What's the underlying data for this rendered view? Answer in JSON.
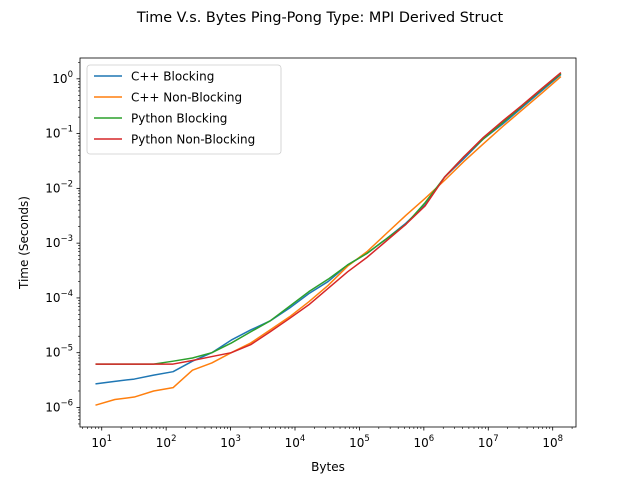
{
  "chart_data": {
    "type": "line",
    "title": "Time V.s. Bytes Ping-Pong Type: MPI Derived Struct",
    "xlabel": "Bytes",
    "ylabel": "Time (Seconds)",
    "xscale": "log",
    "yscale": "log",
    "xlim": [
      4.6,
      230000000.0
    ],
    "ylim": [
      4.4e-07,
      2.4
    ],
    "x_ticks": [
      {
        "value": 10,
        "base": "10",
        "exp": "1"
      },
      {
        "value": 100,
        "base": "10",
        "exp": "2"
      },
      {
        "value": 1000,
        "base": "10",
        "exp": "3"
      },
      {
        "value": 10000,
        "base": "10",
        "exp": "4"
      },
      {
        "value": 100000,
        "base": "10",
        "exp": "5"
      },
      {
        "value": 1000000,
        "base": "10",
        "exp": "6"
      },
      {
        "value": 10000000,
        "base": "10",
        "exp": "7"
      },
      {
        "value": 100000000,
        "base": "10",
        "exp": "8"
      }
    ],
    "y_ticks": [
      {
        "value": 1e-06,
        "base": "10",
        "exp": "−6"
      },
      {
        "value": 1e-05,
        "base": "10",
        "exp": "−5"
      },
      {
        "value": 0.0001,
        "base": "10",
        "exp": "−4"
      },
      {
        "value": 0.001,
        "base": "10",
        "exp": "−3"
      },
      {
        "value": 0.01,
        "base": "10",
        "exp": "−2"
      },
      {
        "value": 0.1,
        "base": "10",
        "exp": "−1"
      },
      {
        "value": 1,
        "base": "10",
        "exp": "0"
      }
    ],
    "grid": false,
    "legend_position": "top-left",
    "x": [
      8,
      16,
      32,
      64,
      128,
      256,
      512,
      1024,
      2048,
      4096,
      8192,
      16384,
      32768,
      65536,
      131072,
      262144,
      524288,
      1048576,
      2097152,
      4194304,
      8388608,
      16777216,
      33554432,
      67108864,
      134217728
    ],
    "series": [
      {
        "name": "C++ Blocking",
        "color": "#1f77b4",
        "values": [
          2.7e-06,
          3e-06,
          3.3e-06,
          3.9e-06,
          4.5e-06,
          7e-06,
          1e-05,
          1.7e-05,
          2.6e-05,
          3.8e-05,
          6.5e-05,
          0.00012,
          0.0002,
          0.0004,
          0.00065,
          0.0012,
          0.0023,
          0.005,
          0.016,
          0.035,
          0.08,
          0.15,
          0.3,
          0.6,
          1.2
        ]
      },
      {
        "name": "C++ Non-Blocking",
        "color": "#ff7f0e",
        "values": [
          1.1e-06,
          1.4e-06,
          1.55e-06,
          2e-06,
          2.3e-06,
          4.8e-06,
          6.5e-06,
          1e-05,
          1.5e-05,
          2.6e-05,
          4.5e-05,
          8.5e-05,
          0.00017,
          0.00038,
          0.0007,
          0.0015,
          0.0032,
          0.0066,
          0.014,
          0.031,
          0.065,
          0.135,
          0.27,
          0.54,
          1.1
        ]
      },
      {
        "name": "Python Blocking",
        "color": "#2ca02c",
        "values": [
          6.2e-06,
          6.2e-06,
          6.2e-06,
          6.2e-06,
          7e-06,
          8e-06,
          1e-05,
          1.5e-05,
          2.4e-05,
          3.8e-05,
          7e-05,
          0.00013,
          0.00022,
          0.0004,
          0.00065,
          0.0012,
          0.0022,
          0.0055,
          0.016,
          0.038,
          0.08,
          0.16,
          0.32,
          0.64,
          1.25
        ]
      },
      {
        "name": "Python Non-Blocking",
        "color": "#d62728",
        "values": [
          6.2e-06,
          6.2e-06,
          6.2e-06,
          6.2e-06,
          6.2e-06,
          7.2e-06,
          8.5e-06,
          1e-05,
          1.4e-05,
          2.4e-05,
          4.2e-05,
          7.5e-05,
          0.00015,
          0.0003,
          0.00055,
          0.0011,
          0.0022,
          0.0048,
          0.016,
          0.038,
          0.085,
          0.17,
          0.33,
          0.66,
          1.3
        ]
      }
    ]
  }
}
